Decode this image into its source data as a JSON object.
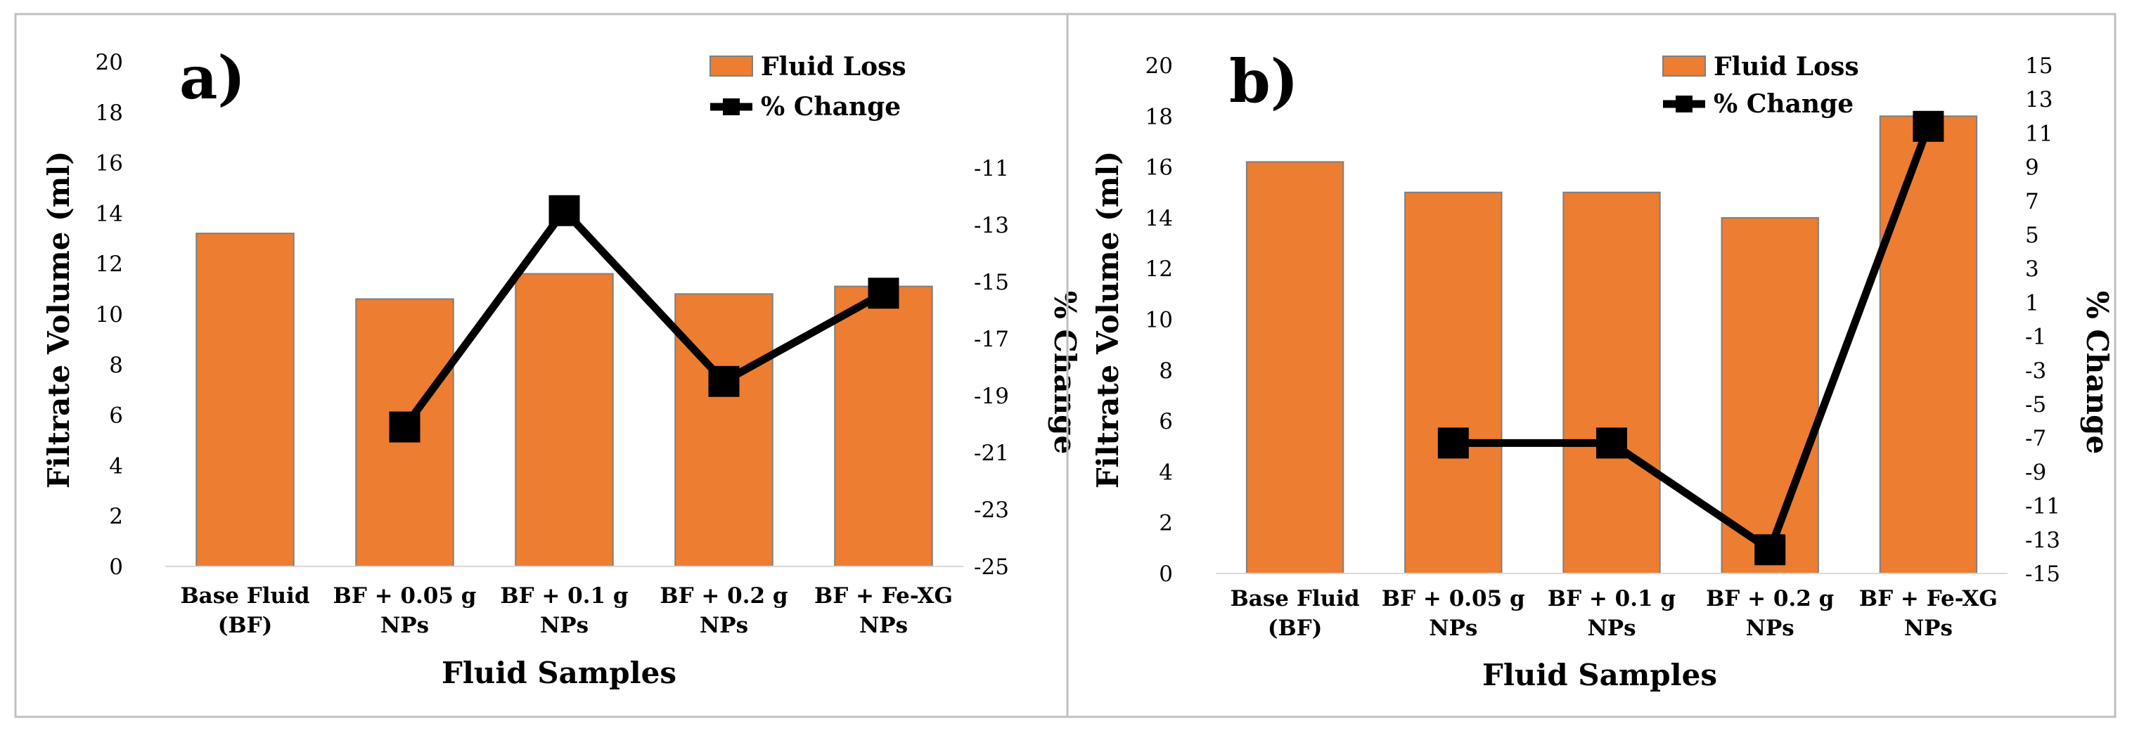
{
  "colors": {
    "bar_fill": "#ED7D31",
    "bar_edge": "#7F7F7F",
    "line": "#000000",
    "panel_border": "#C0C0C0"
  },
  "chart_data": [
    {
      "panel_label": "a)",
      "type": "bar+line",
      "categories": [
        [
          "Base Fluid",
          "(BF)"
        ],
        [
          "BF + 0.05 g",
          "NPs"
        ],
        [
          "BF + 0.1 g",
          "NPs"
        ],
        [
          "BF + 0.2 g",
          "NPs"
        ],
        [
          "BF + Fe-XG",
          "NPs"
        ]
      ],
      "xlabel": "Fluid Samples",
      "ylabel": "Filtrate Volume (ml)",
      "y2label": "% Change",
      "ylim": [
        0,
        20
      ],
      "yticks": [
        0,
        2,
        4,
        6,
        8,
        10,
        12,
        14,
        16,
        18,
        20
      ],
      "y2lim": [
        -25,
        -9
      ],
      "y2ticks": [
        -25,
        -23,
        -21,
        -19,
        -17,
        -15,
        -13,
        -11
      ],
      "legend_position": "top-right",
      "series": [
        {
          "name": "Fluid Loss",
          "kind": "bar",
          "axis": "left",
          "values": [
            13.2,
            10.6,
            11.6,
            10.8,
            11.1
          ]
        },
        {
          "name": "% Change",
          "kind": "line",
          "axis": "right",
          "values": [
            null,
            -20.1,
            -12.5,
            -18.5,
            -15.4
          ]
        }
      ],
      "grid": false
    },
    {
      "panel_label": "b)",
      "type": "bar+line",
      "categories": [
        [
          "Base Fluid",
          "(BF)"
        ],
        [
          "BF + 0.05 g",
          "NPs"
        ],
        [
          "BF + 0.1 g",
          "NPs"
        ],
        [
          "BF + 0.2 g",
          "NPs"
        ],
        [
          "BF + Fe-XG",
          "NPs"
        ]
      ],
      "xlabel": "Fluid Samples",
      "ylabel": "Filtrate Volume (ml)",
      "y2label": "% Change",
      "ylim": [
        0,
        20
      ],
      "yticks": [
        0,
        2,
        4,
        6,
        8,
        10,
        12,
        14,
        16,
        18,
        20
      ],
      "y2lim": [
        -15,
        15
      ],
      "y2ticks": [
        -15,
        -13,
        -11,
        -9,
        -7,
        -5,
        -3,
        -1,
        1,
        3,
        5,
        7,
        9,
        11,
        13,
        15
      ],
      "legend_position": "top-right",
      "series": [
        {
          "name": "Fluid Loss",
          "kind": "bar",
          "axis": "left",
          "values": [
            16.2,
            15.0,
            15.0,
            14.0,
            18.0
          ]
        },
        {
          "name": "% Change",
          "kind": "line",
          "axis": "right",
          "values": [
            null,
            -7.3,
            -7.3,
            -13.6,
            11.4
          ]
        }
      ],
      "grid": false
    }
  ]
}
